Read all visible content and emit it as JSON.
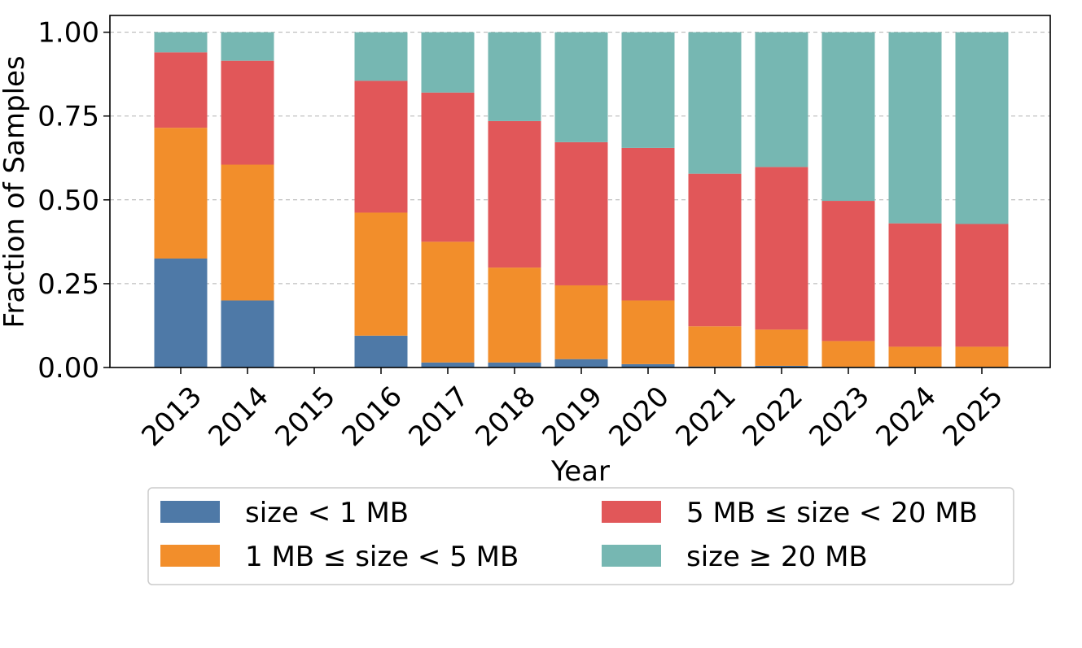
{
  "chart_data": {
    "type": "bar",
    "stacked": true,
    "title": "",
    "xlabel": "Year",
    "ylabel": "Fraction of Samples",
    "ylim": [
      0,
      1.05
    ],
    "yticks": [
      "0.00",
      "0.25",
      "0.50",
      "0.75",
      "1.00"
    ],
    "ytick_values": [
      0,
      0.25,
      0.5,
      0.75,
      1.0
    ],
    "grid": "horizontal dashed",
    "legend_position": "below",
    "categories": [
      "2013",
      "2014",
      "2015",
      "2016",
      "2017",
      "2018",
      "2019",
      "2020",
      "2021",
      "2022",
      "2023",
      "2024",
      "2025"
    ],
    "series": [
      {
        "name": "size < 1 MB",
        "color": "#4e79a7",
        "values": [
          0.325,
          0.2,
          0,
          0.095,
          0.015,
          0.015,
          0.025,
          0.01,
          0.003,
          0.005,
          0.002,
          0.002,
          0.002
        ]
      },
      {
        "name": "1 MB ≤ size < 5 MB",
        "color": "#f28e2b",
        "values": [
          0.39,
          0.405,
          0,
          0.367,
          0.36,
          0.283,
          0.22,
          0.19,
          0.12,
          0.108,
          0.077,
          0.06,
          0.06
        ]
      },
      {
        "name": "5 MB ≤ size < 20 MB",
        "color": "#e15759",
        "values": [
          0.225,
          0.31,
          0,
          0.393,
          0.445,
          0.437,
          0.427,
          0.455,
          0.455,
          0.485,
          0.418,
          0.368,
          0.366
        ]
      },
      {
        "name": "size ≥ 20 MB",
        "color": "#76b7b2",
        "values": [
          0.06,
          0.085,
          0,
          0.145,
          0.18,
          0.265,
          0.328,
          0.345,
          0.422,
          0.402,
          0.503,
          0.57,
          0.572
        ]
      }
    ]
  }
}
